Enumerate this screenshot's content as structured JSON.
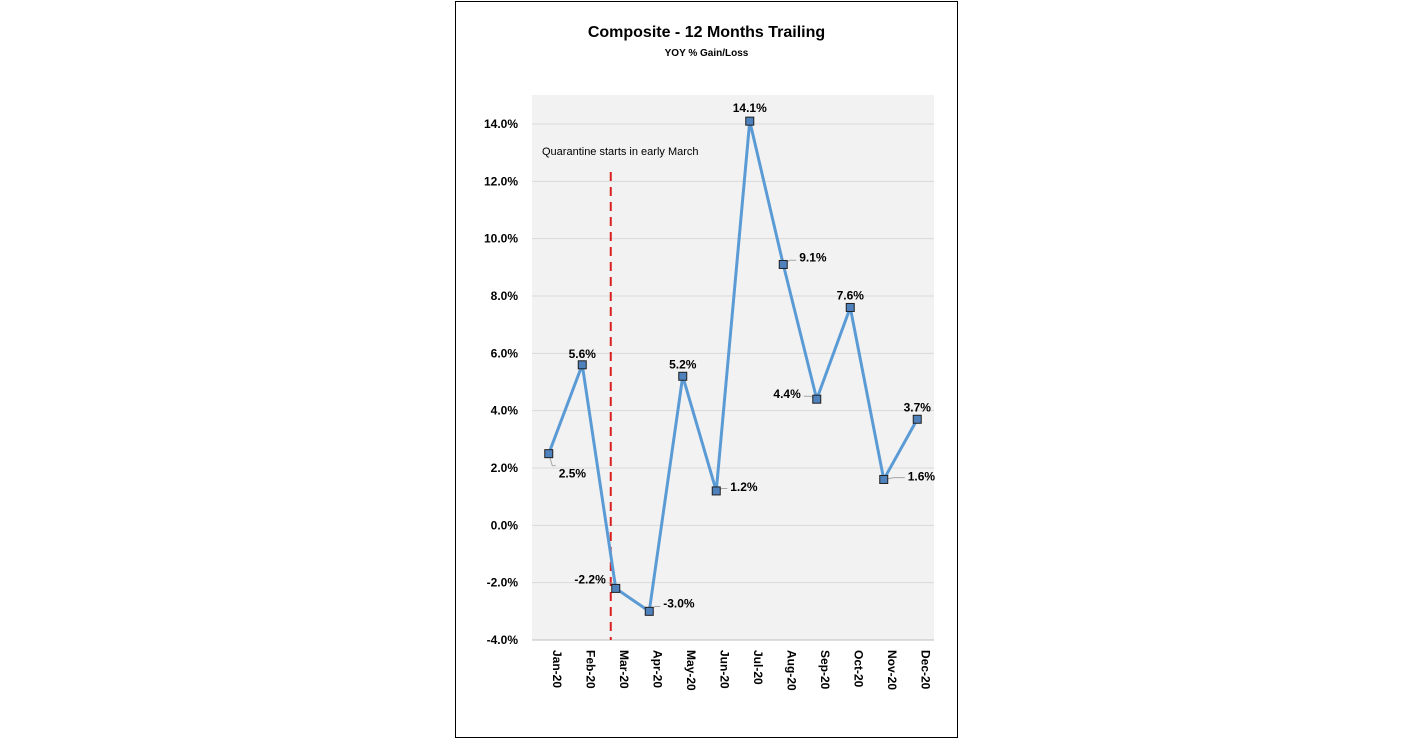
{
  "chart_data": {
    "type": "line",
    "title": "Composite - 12 Months Trailing",
    "subtitle": "YOY % Gain/Loss",
    "xlabel": "",
    "ylabel": "",
    "categories": [
      "Jan-20",
      "Feb-20",
      "Mar-20",
      "Apr-20",
      "May-20",
      "Jun-20",
      "Jul-20",
      "Aug-20",
      "Sep-20",
      "Oct-20",
      "Nov-20",
      "Dec-20"
    ],
    "series": [
      {
        "values": [
          2.5,
          5.6,
          -2.2,
          -3.0,
          5.2,
          1.2,
          14.1,
          9.1,
          4.4,
          7.6,
          1.6,
          3.7
        ],
        "data_labels": [
          "2.5%",
          "5.6%",
          "-2.2%",
          "-3.0%",
          "5.2%",
          "1.2%",
          "14.1%",
          "9.1%",
          "4.4%",
          "7.6%",
          "1.6%",
          "3.7%"
        ],
        "color": "#5B9BD5",
        "marker_fill": "#4F81BD",
        "marker_stroke": "#1F1F1F"
      }
    ],
    "ylim": [
      -4.0,
      14.0
    ],
    "yticks": [
      14.0,
      12.0,
      10.0,
      8.0,
      6.0,
      4.0,
      2.0,
      0.0,
      -2.0,
      -4.0
    ],
    "ytick_labels": [
      "14.0%",
      "12.0%",
      "10.0%",
      "8.0%",
      "6.0%",
      "4.0%",
      "2.0%",
      "0.0%",
      "-2.0%",
      "-4.0%"
    ],
    "grid": true,
    "legend": "none",
    "annotations": [
      {
        "text": "Quarantine starts in early March",
        "at_category": "Mar-20",
        "line_style": "dashed",
        "line_color": "#D92020"
      }
    ],
    "plot_background": "#F2F2F2",
    "gridline_color": "#D9D9D9"
  }
}
